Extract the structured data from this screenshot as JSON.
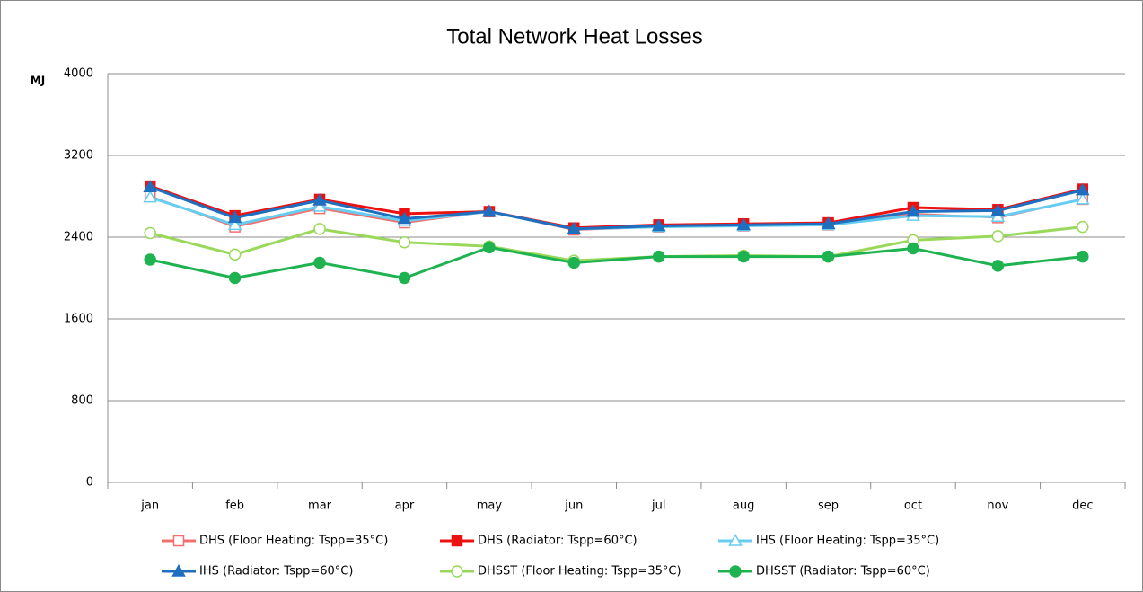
{
  "chart_data": {
    "type": "line",
    "title": "Total Network Heat Losses",
    "y_label": "MJ",
    "categories": [
      "jan",
      "feb",
      "mar",
      "apr",
      "may",
      "jun",
      "jul",
      "aug",
      "sep",
      "oct",
      "nov",
      "dec"
    ],
    "ylim": [
      0,
      4000
    ],
    "yticks": [
      0,
      800,
      1600,
      2400,
      3200,
      4000
    ],
    "grid": true,
    "legend": "bottom",
    "series": [
      {
        "name": "DHS (Floor Heating: Tspp=35°C)",
        "color": "#f07070",
        "marker": "square",
        "filled": false,
        "width": 2,
        "values": [
          2800,
          2500,
          2680,
          2540,
          2650,
          2470,
          2500,
          2510,
          2520,
          2630,
          2590,
          2770
        ]
      },
      {
        "name": "DHS (Radiator: Tspp=60°C)",
        "color": "#ee1111",
        "marker": "square",
        "filled": true,
        "width": 3,
        "values": [
          2900,
          2610,
          2770,
          2630,
          2650,
          2490,
          2520,
          2530,
          2540,
          2690,
          2670,
          2870
        ]
      },
      {
        "name": "IHS (Floor Heating: Tspp=35°C)",
        "color": "#66ccf0",
        "marker": "triangle",
        "filled": false,
        "width": 3,
        "values": [
          2790,
          2520,
          2700,
          2560,
          2650,
          2480,
          2500,
          2510,
          2520,
          2610,
          2600,
          2770
        ]
      },
      {
        "name": "IHS (Radiator: Tspp=60°C)",
        "color": "#1f6fc0",
        "marker": "triangle",
        "filled": true,
        "width": 3,
        "values": [
          2890,
          2590,
          2760,
          2580,
          2650,
          2480,
          2510,
          2520,
          2530,
          2650,
          2660,
          2860
        ]
      },
      {
        "name": "DHSST (Floor Heating: Tspp=35°C)",
        "color": "#99d85a",
        "marker": "circle",
        "filled": false,
        "width": 3,
        "values": [
          2440,
          2230,
          2480,
          2350,
          2310,
          2170,
          2210,
          2220,
          2210,
          2370,
          2410,
          2500
        ]
      },
      {
        "name": "DHSST (Radiator: Tspp=60°C)",
        "color": "#1eb350",
        "marker": "circle",
        "filled": true,
        "width": 3,
        "values": [
          2180,
          2000,
          2150,
          2000,
          2300,
          2150,
          2210,
          2210,
          2210,
          2290,
          2120,
          2210
        ]
      }
    ]
  }
}
